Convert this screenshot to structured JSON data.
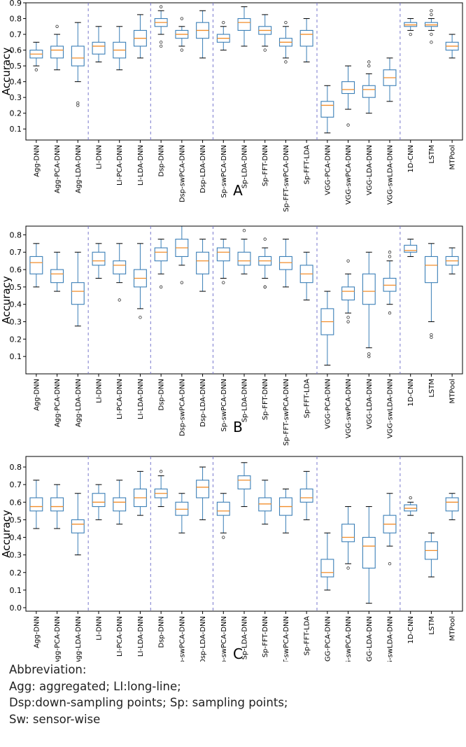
{
  "colors": {
    "box": "#3b7fb7",
    "median": "#f28e2b",
    "divider": "#7777cc",
    "axis": "#000000"
  },
  "categories": [
    "Agg-DNN",
    "Agg-PCA-DNN",
    "Agg-LDA-DNN",
    "LI-DNN",
    "LI-PCA-DNN",
    "LI-LDA-DNN",
    "Dsp-DNN",
    "Dsp-swPCA-DNN",
    "Dsp-LDA-DNN",
    "Sp-swPCA-DNN",
    "Sp-LDA-DNN",
    "Sp-FFT-DNN",
    "Sp-FFT-swPCA-DNN",
    "Sp-FFT-LDA",
    "VGG-PCA-DNN",
    "VGG-swPCA-DNN",
    "VGG-LDA-DNN",
    "VGG-swLDA-DNN",
    "1D-CNN",
    "LSTM",
    "MTPool"
  ],
  "chart_data": [
    {
      "type": "box",
      "panel_label": "A",
      "ylabel": "Accuracy",
      "ylim": [
        0.03,
        0.9
      ],
      "yticks": [
        "0.1",
        "0.2",
        "0.3",
        "0.4",
        "0.5",
        "0.6",
        "0.7",
        "0.8",
        "0.9"
      ],
      "group_dividers_after": [
        3,
        6,
        9,
        14,
        18
      ],
      "grid": false,
      "boxes": [
        {
          "q1": 0.55,
          "median": 0.575,
          "q3": 0.6,
          "whisker_low": 0.5,
          "whisker_high": 0.65,
          "outliers": [
            0.475
          ]
        },
        {
          "q1": 0.55,
          "median": 0.6,
          "q3": 0.625,
          "whisker_low": 0.475,
          "whisker_high": 0.7,
          "outliers": [
            0.75
          ]
        },
        {
          "q1": 0.5,
          "median": 0.55,
          "q3": 0.625,
          "whisker_low": 0.4,
          "whisker_high": 0.775,
          "outliers": [
            0.25,
            0.265
          ]
        },
        {
          "q1": 0.575,
          "median": 0.625,
          "q3": 0.65,
          "whisker_low": 0.525,
          "whisker_high": 0.75,
          "outliers": []
        },
        {
          "q1": 0.55,
          "median": 0.6,
          "q3": 0.65,
          "whisker_low": 0.475,
          "whisker_high": 0.75,
          "outliers": []
        },
        {
          "q1": 0.625,
          "median": 0.675,
          "q3": 0.725,
          "whisker_low": 0.55,
          "whisker_high": 0.825,
          "outliers": []
        },
        {
          "q1": 0.75,
          "median": 0.775,
          "q3": 0.8,
          "whisker_low": 0.7,
          "whisker_high": 0.85,
          "outliers": [
            0.875,
            0.65,
            0.625
          ]
        },
        {
          "q1": 0.675,
          "median": 0.7,
          "q3": 0.725,
          "whisker_low": 0.625,
          "whisker_high": 0.75,
          "outliers": [
            0.8,
            0.6
          ]
        },
        {
          "q1": 0.675,
          "median": 0.725,
          "q3": 0.775,
          "whisker_low": 0.55,
          "whisker_high": 0.85,
          "outliers": []
        },
        {
          "q1": 0.65,
          "median": 0.675,
          "q3": 0.7,
          "whisker_low": 0.6,
          "whisker_high": 0.75,
          "outliers": [
            0.775
          ]
        },
        {
          "q1": 0.725,
          "median": 0.775,
          "q3": 0.8,
          "whisker_low": 0.625,
          "whisker_high": 0.875,
          "outliers": []
        },
        {
          "q1": 0.7,
          "median": 0.725,
          "q3": 0.75,
          "whisker_low": 0.625,
          "whisker_high": 0.825,
          "outliers": [
            0.6
          ]
        },
        {
          "q1": 0.625,
          "median": 0.65,
          "q3": 0.675,
          "whisker_low": 0.55,
          "whisker_high": 0.75,
          "outliers": [
            0.775,
            0.525
          ]
        },
        {
          "q1": 0.625,
          "median": 0.7,
          "q3": 0.725,
          "whisker_low": 0.525,
          "whisker_high": 0.8,
          "outliers": []
        },
        {
          "q1": 0.175,
          "median": 0.25,
          "q3": 0.275,
          "whisker_low": 0.075,
          "whisker_high": 0.375,
          "outliers": []
        },
        {
          "q1": 0.325,
          "median": 0.35,
          "q3": 0.4,
          "whisker_low": 0.225,
          "whisker_high": 0.5,
          "outliers": [
            0.125
          ]
        },
        {
          "q1": 0.3,
          "median": 0.35,
          "q3": 0.375,
          "whisker_low": 0.2,
          "whisker_high": 0.45,
          "outliers": [
            0.5,
            0.525
          ]
        },
        {
          "q1": 0.375,
          "median": 0.425,
          "q3": 0.475,
          "whisker_low": 0.275,
          "whisker_high": 0.55,
          "outliers": []
        },
        {
          "q1": 0.75,
          "median": 0.76,
          "q3": 0.775,
          "whisker_low": 0.725,
          "whisker_high": 0.8,
          "outliers": [
            0.7
          ]
        },
        {
          "q1": 0.75,
          "median": 0.76,
          "q3": 0.775,
          "whisker_low": 0.725,
          "whisker_high": 0.8,
          "outliers": [
            0.85,
            0.825,
            0.7,
            0.65
          ]
        },
        {
          "q1": 0.6,
          "median": 0.625,
          "q3": 0.65,
          "whisker_low": 0.55,
          "whisker_high": 0.7,
          "outliers": []
        }
      ]
    },
    {
      "type": "box",
      "panel_label": "B",
      "ylabel": "Accuracy",
      "ylim": [
        0.0,
        0.85
      ],
      "yticks": [
        "0.1",
        "0.2",
        "0.3",
        "0.4",
        "0.5",
        "0.6",
        "0.7",
        "0.8"
      ],
      "group_dividers_after": [
        3,
        6,
        9,
        14,
        18
      ],
      "grid": false,
      "boxes": [
        {
          "q1": 0.575,
          "median": 0.64,
          "q3": 0.675,
          "whisker_low": 0.5,
          "whisker_high": 0.75,
          "outliers": []
        },
        {
          "q1": 0.525,
          "median": 0.575,
          "q3": 0.6,
          "whisker_low": 0.475,
          "whisker_high": 0.7,
          "outliers": []
        },
        {
          "q1": 0.4,
          "median": 0.475,
          "q3": 0.525,
          "whisker_low": 0.275,
          "whisker_high": 0.7,
          "outliers": []
        },
        {
          "q1": 0.625,
          "median": 0.65,
          "q3": 0.7,
          "whisker_low": 0.55,
          "whisker_high": 0.75,
          "outliers": []
        },
        {
          "q1": 0.575,
          "median": 0.625,
          "q3": 0.65,
          "whisker_low": 0.525,
          "whisker_high": 0.75,
          "outliers": [
            0.425
          ]
        },
        {
          "q1": 0.5,
          "median": 0.55,
          "q3": 0.6,
          "whisker_low": 0.375,
          "whisker_high": 0.75,
          "outliers": [
            0.325
          ]
        },
        {
          "q1": 0.65,
          "median": 0.7,
          "q3": 0.725,
          "whisker_low": 0.575,
          "whisker_high": 0.775,
          "outliers": [
            0.5
          ]
        },
        {
          "q1": 0.675,
          "median": 0.725,
          "q3": 0.775,
          "whisker_low": 0.625,
          "whisker_high": 0.85,
          "outliers": [
            0.525
          ]
        },
        {
          "q1": 0.575,
          "median": 0.65,
          "q3": 0.7,
          "whisker_low": 0.475,
          "whisker_high": 0.775,
          "outliers": []
        },
        {
          "q1": 0.65,
          "median": 0.7,
          "q3": 0.725,
          "whisker_low": 0.55,
          "whisker_high": 0.775,
          "outliers": [
            0.525
          ]
        },
        {
          "q1": 0.625,
          "median": 0.65,
          "q3": 0.7,
          "whisker_low": 0.575,
          "whisker_high": 0.775,
          "outliers": [
            0.825
          ]
        },
        {
          "q1": 0.625,
          "median": 0.65,
          "q3": 0.675,
          "whisker_low": 0.55,
          "whisker_high": 0.725,
          "outliers": [
            0.775,
            0.5,
            0.5
          ]
        },
        {
          "q1": 0.6,
          "median": 0.64,
          "q3": 0.675,
          "whisker_low": 0.5,
          "whisker_high": 0.775,
          "outliers": []
        },
        {
          "q1": 0.525,
          "median": 0.575,
          "q3": 0.625,
          "whisker_low": 0.425,
          "whisker_high": 0.7,
          "outliers": []
        },
        {
          "q1": 0.225,
          "median": 0.3,
          "q3": 0.375,
          "whisker_low": 0.05,
          "whisker_high": 0.475,
          "outliers": []
        },
        {
          "q1": 0.425,
          "median": 0.475,
          "q3": 0.5,
          "whisker_low": 0.35,
          "whisker_high": 0.575,
          "outliers": [
            0.65,
            0.325,
            0.3
          ]
        },
        {
          "q1": 0.4,
          "median": 0.475,
          "q3": 0.575,
          "whisker_low": 0.15,
          "whisker_high": 0.7,
          "outliers": [
            0.115,
            0.1
          ]
        },
        {
          "q1": 0.475,
          "median": 0.51,
          "q3": 0.55,
          "whisker_low": 0.4,
          "whisker_high": 0.65,
          "outliers": [
            0.7,
            0.675,
            0.35
          ]
        },
        {
          "q1": 0.7,
          "median": 0.71,
          "q3": 0.74,
          "whisker_low": 0.675,
          "whisker_high": 0.775,
          "outliers": []
        },
        {
          "q1": 0.525,
          "median": 0.625,
          "q3": 0.675,
          "whisker_low": 0.3,
          "whisker_high": 0.75,
          "outliers": [
            0.225,
            0.21
          ]
        },
        {
          "q1": 0.625,
          "median": 0.65,
          "q3": 0.675,
          "whisker_low": 0.575,
          "whisker_high": 0.725,
          "outliers": []
        }
      ]
    },
    {
      "type": "box",
      "panel_label": "C",
      "ylabel": "Accuracy",
      "ylim": [
        -0.02,
        0.86
      ],
      "yticks": [
        "0.0",
        "0.1",
        "0.2",
        "0.3",
        "0.4",
        "0.5",
        "0.6",
        "0.7",
        "0.8"
      ],
      "group_dividers_after": [
        3,
        6,
        9,
        14,
        18
      ],
      "grid": false,
      "boxes": [
        {
          "q1": 0.55,
          "median": 0.575,
          "q3": 0.625,
          "whisker_low": 0.45,
          "whisker_high": 0.725,
          "outliers": []
        },
        {
          "q1": 0.55,
          "median": 0.575,
          "q3": 0.625,
          "whisker_low": 0.45,
          "whisker_high": 0.7,
          "outliers": []
        },
        {
          "q1": 0.425,
          "median": 0.475,
          "q3": 0.5,
          "whisker_low": 0.3,
          "whisker_high": 0.65,
          "outliers": []
        },
        {
          "q1": 0.575,
          "median": 0.6,
          "q3": 0.65,
          "whisker_low": 0.5,
          "whisker_high": 0.7,
          "outliers": []
        },
        {
          "q1": 0.55,
          "median": 0.6,
          "q3": 0.625,
          "whisker_low": 0.475,
          "whisker_high": 0.725,
          "outliers": []
        },
        {
          "q1": 0.575,
          "median": 0.625,
          "q3": 0.675,
          "whisker_low": 0.525,
          "whisker_high": 0.775,
          "outliers": []
        },
        {
          "q1": 0.625,
          "median": 0.65,
          "q3": 0.675,
          "whisker_low": 0.575,
          "whisker_high": 0.75,
          "outliers": [
            0.775
          ]
        },
        {
          "q1": 0.525,
          "median": 0.56,
          "q3": 0.6,
          "whisker_low": 0.425,
          "whisker_high": 0.65,
          "outliers": []
        },
        {
          "q1": 0.625,
          "median": 0.685,
          "q3": 0.725,
          "whisker_low": 0.5,
          "whisker_high": 0.8,
          "outliers": []
        },
        {
          "q1": 0.525,
          "median": 0.55,
          "q3": 0.6,
          "whisker_low": 0.425,
          "whisker_high": 0.65,
          "outliers": [
            0.4
          ]
        },
        {
          "q1": 0.675,
          "median": 0.725,
          "q3": 0.75,
          "whisker_low": 0.575,
          "whisker_high": 0.825,
          "outliers": []
        },
        {
          "q1": 0.55,
          "median": 0.59,
          "q3": 0.625,
          "whisker_low": 0.475,
          "whisker_high": 0.725,
          "outliers": []
        },
        {
          "q1": 0.525,
          "median": 0.575,
          "q3": 0.625,
          "whisker_low": 0.425,
          "whisker_high": 0.675,
          "outliers": []
        },
        {
          "q1": 0.6,
          "median": 0.625,
          "q3": 0.675,
          "whisker_low": 0.5,
          "whisker_high": 0.775,
          "outliers": []
        },
        {
          "q1": 0.175,
          "median": 0.2,
          "q3": 0.275,
          "whisker_low": 0.1,
          "whisker_high": 0.425,
          "outliers": []
        },
        {
          "q1": 0.375,
          "median": 0.4,
          "q3": 0.475,
          "whisker_low": 0.25,
          "whisker_high": 0.575,
          "outliers": [
            0.225
          ]
        },
        {
          "q1": 0.225,
          "median": 0.35,
          "q3": 0.4,
          "whisker_low": 0.025,
          "whisker_high": 0.575,
          "outliers": []
        },
        {
          "q1": 0.425,
          "median": 0.475,
          "q3": 0.525,
          "whisker_low": 0.35,
          "whisker_high": 0.65,
          "outliers": [
            0.25
          ]
        },
        {
          "q1": 0.55,
          "median": 0.565,
          "q3": 0.585,
          "whisker_low": 0.525,
          "whisker_high": 0.6,
          "outliers": [
            0.625
          ]
        },
        {
          "q1": 0.275,
          "median": 0.325,
          "q3": 0.375,
          "whisker_low": 0.175,
          "whisker_high": 0.425,
          "outliers": []
        },
        {
          "q1": 0.55,
          "median": 0.6,
          "q3": 0.625,
          "whisker_low": 0.5,
          "whisker_high": 0.65,
          "outliers": []
        }
      ]
    }
  ],
  "abbreviation": {
    "title": "Abbreviation:",
    "lines": [
      "Agg: aggregated; LI:long-line;",
      "Dsp:down-sampling points; Sp: sampling points;",
      "Sw: sensor-wise"
    ]
  }
}
